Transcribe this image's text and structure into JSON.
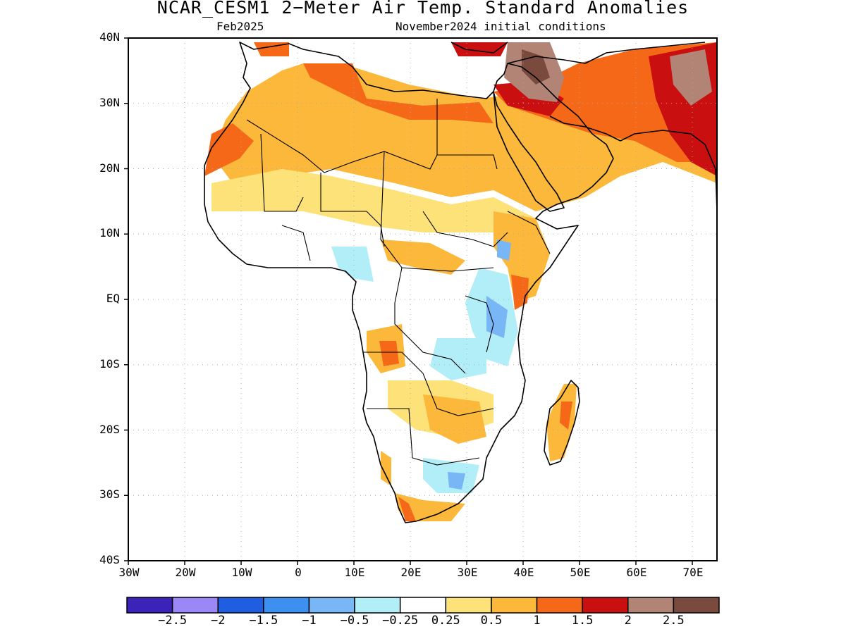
{
  "title": "NCAR_CESM1 2−Meter Air Temp. Standard Anomalies",
  "subtitle_left": "Feb2025",
  "subtitle_right": "November2024 initial conditions",
  "lat_labels": [
    "40N",
    "30N",
    "20N",
    "10N",
    "EQ",
    "10S",
    "20S",
    "30S",
    "40S"
  ],
  "lon_labels": [
    "30W",
    "20W",
    "10W",
    "0",
    "10E",
    "20E",
    "30E",
    "40E",
    "50E",
    "60E",
    "70E"
  ],
  "colorbar": {
    "colors": [
      "#3b22b8",
      "#9b87f5",
      "#1f5ee0",
      "#3c90f0",
      "#78b6f5",
      "#b2eef8",
      "#ffffff",
      "#fde27a",
      "#fbb83a",
      "#f56818",
      "#c90f0f",
      "#b28476",
      "#7a4a3e"
    ],
    "labels": [
      "−2.5",
      "−2",
      "−1.5",
      "−1",
      "−0.5",
      "−0.25",
      "0.25",
      "0.5",
      "1",
      "1.5",
      "2",
      "2.5"
    ]
  },
  "map_colors": {
    "land_outline": "#000000",
    "grid": "#aaaaaa",
    "anom_0_25": "#fde27a",
    "anom_0_5": "#fbb83a",
    "anom_1": "#f56818",
    "anom_1_5": "#c90f0f",
    "anom_2": "#b28476",
    "anom_2_5": "#7a4a3e",
    "anom_neg_0_25": "#b2eef8",
    "anom_neg_0_5": "#78b6f5",
    "anom_neg_1": "#3c90f0"
  }
}
